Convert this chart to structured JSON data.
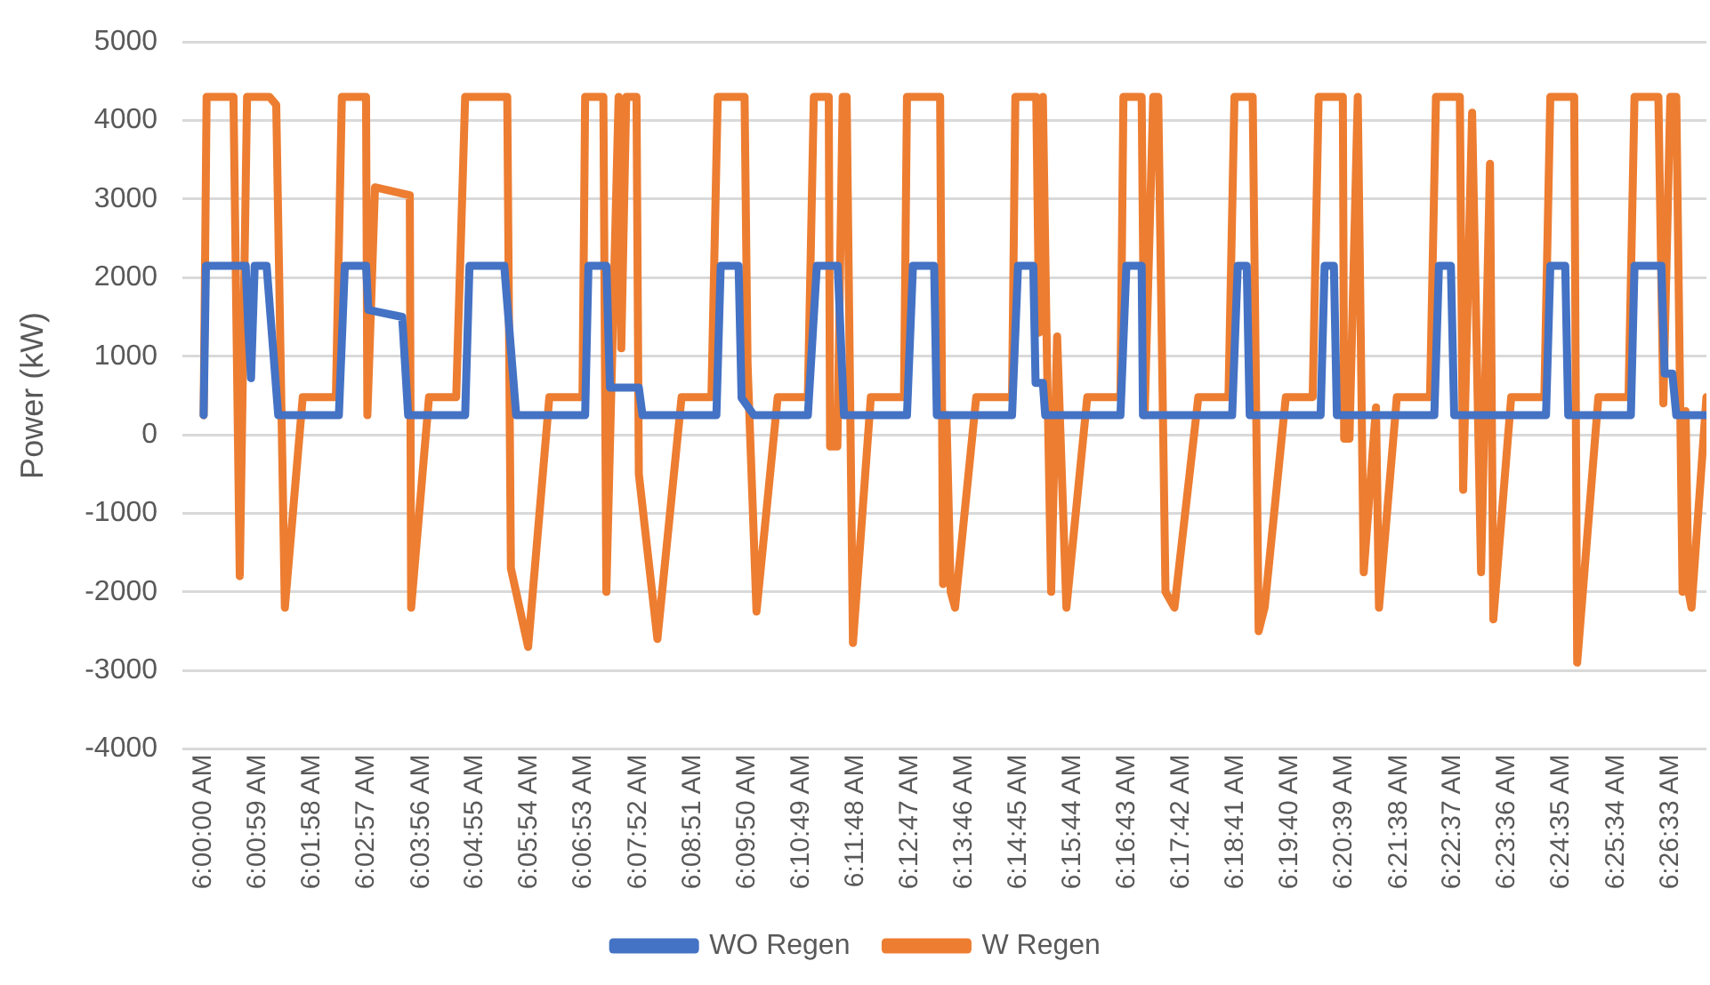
{
  "chart_data": {
    "type": "line",
    "ylabel": "Power (kW)",
    "xlim": [
      5.9936,
      6.4534
    ],
    "ylim": [
      -4000,
      5000
    ],
    "yticks": [
      -4000,
      -3000,
      -2000,
      -1000,
      0,
      1000,
      2000,
      3000,
      4000,
      5000
    ],
    "xticks": [
      {
        "value": 6.0,
        "label": "6:00:00 AM"
      },
      {
        "value": 6.0164,
        "label": "6:00:59 AM"
      },
      {
        "value": 6.0328,
        "label": "6:01:58 AM"
      },
      {
        "value": 6.0492,
        "label": "6:02:57 AM"
      },
      {
        "value": 6.0656,
        "label": "6:03:56 AM"
      },
      {
        "value": 6.0819,
        "label": "6:04:55 AM"
      },
      {
        "value": 6.0983,
        "label": "6:05:54 AM"
      },
      {
        "value": 6.1147,
        "label": "6:06:53 AM"
      },
      {
        "value": 6.1311,
        "label": "6:07:52 AM"
      },
      {
        "value": 6.1475,
        "label": "6:08:51 AM"
      },
      {
        "value": 6.1639,
        "label": "6:09:50 AM"
      },
      {
        "value": 6.1803,
        "label": "6:10:49 AM"
      },
      {
        "value": 6.1967,
        "label": "6:11:48 AM"
      },
      {
        "value": 6.2131,
        "label": "6:12:47 AM"
      },
      {
        "value": 6.2294,
        "label": "6:13:46 AM"
      },
      {
        "value": 6.2458,
        "label": "6:14:45 AM"
      },
      {
        "value": 6.2622,
        "label": "6:15:44 AM"
      },
      {
        "value": 6.2786,
        "label": "6:16:43 AM"
      },
      {
        "value": 6.295,
        "label": "6:17:42 AM"
      },
      {
        "value": 6.3114,
        "label": "6:18:41 AM"
      },
      {
        "value": 6.3278,
        "label": "6:19:40 AM"
      },
      {
        "value": 6.3442,
        "label": "6:20:39 AM"
      },
      {
        "value": 6.3606,
        "label": "6:21:38 AM"
      },
      {
        "value": 6.3769,
        "label": "6:22:37 AM"
      },
      {
        "value": 6.3933,
        "label": "6:23:36 AM"
      },
      {
        "value": 6.4097,
        "label": "6:24:35 AM"
      },
      {
        "value": 6.4261,
        "label": "6:25:34 AM"
      },
      {
        "value": 6.4425,
        "label": "6:26:33 AM"
      }
    ],
    "grid": "y",
    "legend": "bottom",
    "marker": "none",
    "line_style": "solid",
    "series": [
      {
        "name": "WO Regen",
        "color": "#4472c4",
        "x": [
          6.0,
          6.0007,
          6.0127,
          6.0135,
          6.0143,
          6.0154,
          6.019,
          6.0225,
          6.0408,
          6.0426,
          6.049,
          6.0497,
          6.0599,
          6.0617,
          6.0789,
          6.0802,
          6.0907,
          6.0943,
          6.1151,
          6.1161,
          6.1215,
          6.1226,
          6.1313,
          6.1324,
          6.1547,
          6.156,
          6.1614,
          6.1623,
          6.166,
          6.1823,
          6.185,
          6.1913,
          6.1932,
          6.2122,
          6.214,
          6.2204,
          6.2212,
          6.2439,
          6.2457,
          6.2503,
          6.251,
          6.2532,
          6.2539,
          6.2766,
          6.2784,
          6.283,
          6.2834,
          6.3103,
          6.312,
          6.3147,
          6.3156,
          6.337,
          6.3382,
          6.341,
          6.3419,
          6.3713,
          6.3727,
          6.3763,
          6.3773,
          6.405,
          6.4063,
          6.4108,
          6.4117,
          6.4306,
          6.4317,
          6.4398,
          6.4408,
          6.4431,
          6.4443,
          6.4534
        ],
        "values": [
          250,
          2150,
          2150,
          1330,
          720,
          2150,
          2150,
          250,
          250,
          2150,
          2150,
          1590,
          1500,
          250,
          250,
          2150,
          2150,
          250,
          250,
          2150,
          2150,
          600,
          600,
          250,
          250,
          2150,
          2150,
          470,
          250,
          250,
          2150,
          2150,
          250,
          250,
          2150,
          2150,
          250,
          250,
          2150,
          2150,
          660,
          660,
          250,
          250,
          2150,
          2150,
          250,
          250,
          2150,
          2150,
          250,
          250,
          2150,
          2150,
          250,
          250,
          2150,
          2150,
          250,
          250,
          2150,
          2150,
          250,
          250,
          2150,
          2150,
          780,
          780,
          250,
          250
        ]
      },
      {
        "name": "W Regen",
        "color": "#ed7d31",
        "x": [
          6.0,
          6.0009,
          6.009,
          6.0109,
          6.0131,
          6.0199,
          6.0219,
          6.0245,
          6.0299,
          6.0399,
          6.0417,
          6.049,
          6.0494,
          6.0517,
          6.0622,
          6.0626,
          6.068,
          6.0762,
          6.0789,
          6.0916,
          6.0927,
          6.0979,
          6.1043,
          6.1143,
          6.1151,
          6.1206,
          6.1215,
          6.1224,
          6.1252,
          6.126,
          6.1275,
          6.1306,
          6.1313,
          6.1369,
          6.1442,
          6.1532,
          6.1551,
          6.1632,
          6.1641,
          6.1668,
          6.1732,
          6.1823,
          6.1841,
          6.1886,
          6.189,
          6.1912,
          6.1928,
          6.194,
          6.1959,
          6.2013,
          6.2113,
          6.2122,
          6.2222,
          6.2231,
          6.2241,
          6.2254,
          6.2267,
          6.2331,
          6.2439,
          6.2449,
          6.2512,
          6.2521,
          6.2532,
          6.2543,
          6.2557,
          6.2575,
          6.2603,
          6.2666,
          6.2766,
          6.2775,
          6.283,
          6.2839,
          6.2865,
          6.288,
          6.2902,
          6.2929,
          6.3001,
          6.3092,
          6.311,
          6.3165,
          6.3183,
          6.3201,
          6.3265,
          6.3346,
          6.3364,
          6.3437,
          6.3441,
          6.3457,
          6.3482,
          6.35,
          6.3537,
          6.3546,
          6.36,
          6.37,
          6.3718,
          6.379,
          6.38,
          6.3827,
          6.3854,
          6.3881,
          6.3891,
          6.3945,
          6.4045,
          6.4063,
          6.4135,
          6.4144,
          6.4208,
          6.4299,
          6.4317,
          6.4389,
          6.4404,
          6.4425,
          6.4443,
          6.4462,
          6.4471,
          6.448,
          6.4489,
          6.4534
        ],
        "values": [
          250,
          4300,
          4300,
          -1800,
          4300,
          4300,
          4200,
          -2200,
          480,
          480,
          4300,
          4300,
          250,
          3150,
          3050,
          -2200,
          480,
          480,
          4300,
          4300,
          -1700,
          -2700,
          480,
          480,
          4300,
          4300,
          -2000,
          -450,
          4300,
          1100,
          4300,
          4300,
          -500,
          -2600,
          480,
          480,
          4300,
          4300,
          900,
          -2250,
          480,
          480,
          4300,
          4300,
          -150,
          -150,
          4300,
          4300,
          -2650,
          480,
          480,
          4300,
          4300,
          -1900,
          250,
          -2000,
          -2200,
          480,
          480,
          4300,
          4300,
          1300,
          4300,
          1300,
          -2000,
          1250,
          -2200,
          480,
          480,
          4300,
          4300,
          250,
          4300,
          4300,
          -2000,
          -2200,
          480,
          480,
          4300,
          4300,
          -2500,
          -2200,
          480,
          480,
          4300,
          4300,
          -50,
          -50,
          4300,
          -1750,
          350,
          -2200,
          480,
          480,
          4300,
          4300,
          -700,
          4100,
          -1750,
          3450,
          -2350,
          480,
          480,
          4300,
          4300,
          -2900,
          480,
          480,
          4300,
          4300,
          400,
          4300,
          4300,
          -2000,
          300,
          -2000,
          -2200,
          480
        ]
      }
    ]
  }
}
